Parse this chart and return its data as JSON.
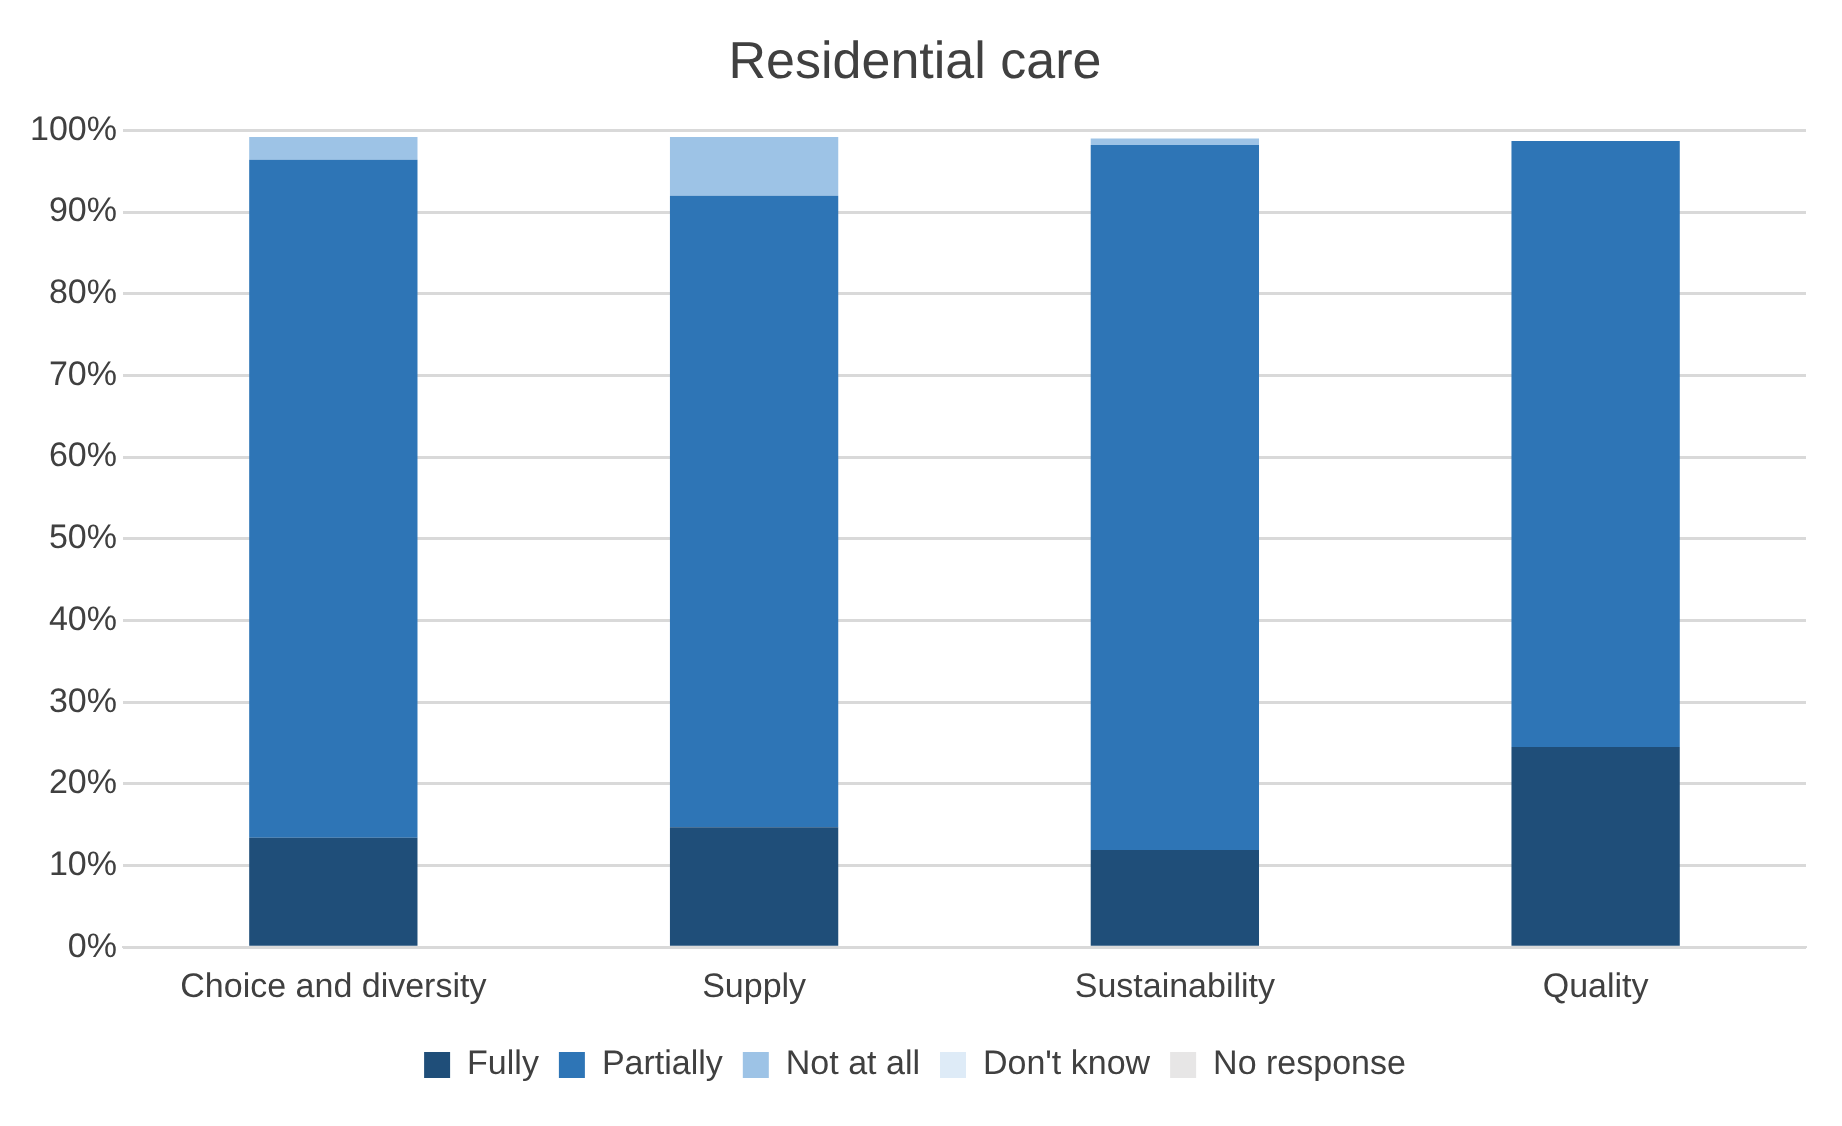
{
  "chart_data": {
    "type": "bar",
    "title": "Residential care",
    "stacked": true,
    "categories": [
      "Choice and diversity",
      "Supply",
      "Sustainability",
      "Quality"
    ],
    "series": [
      {
        "name": "Fully",
        "color": "#1f4e79",
        "values": [
          13.4,
          14.7,
          11.9,
          24.5
        ]
      },
      {
        "name": "Partially",
        "color": "#2e75b6",
        "values": [
          83.0,
          77.3,
          86.3,
          74.2
        ]
      },
      {
        "name": "Not at all",
        "color": "#9dc3e6",
        "values": [
          2.8,
          7.2,
          0.8,
          0
        ]
      },
      {
        "name": "Don't know",
        "color": "#deebf7",
        "values": [
          0,
          0,
          0,
          0
        ]
      },
      {
        "name": "No response",
        "color": "#e7e6e6",
        "values": [
          0,
          0,
          0,
          0
        ]
      }
    ],
    "ylim": [
      0,
      100
    ],
    "yticks": [
      {
        "value": 0,
        "label": "0%"
      },
      {
        "value": 10,
        "label": "10%"
      },
      {
        "value": 20,
        "label": "20%"
      },
      {
        "value": 30,
        "label": "30%"
      },
      {
        "value": 40,
        "label": "40%"
      },
      {
        "value": 50,
        "label": "50%"
      },
      {
        "value": 60,
        "label": "60%"
      },
      {
        "value": 70,
        "label": "70%"
      },
      {
        "value": 80,
        "label": "80%"
      },
      {
        "value": 90,
        "label": "90%"
      },
      {
        "value": 100,
        "label": "100%"
      }
    ],
    "grid": "y",
    "legend": "bottom"
  }
}
